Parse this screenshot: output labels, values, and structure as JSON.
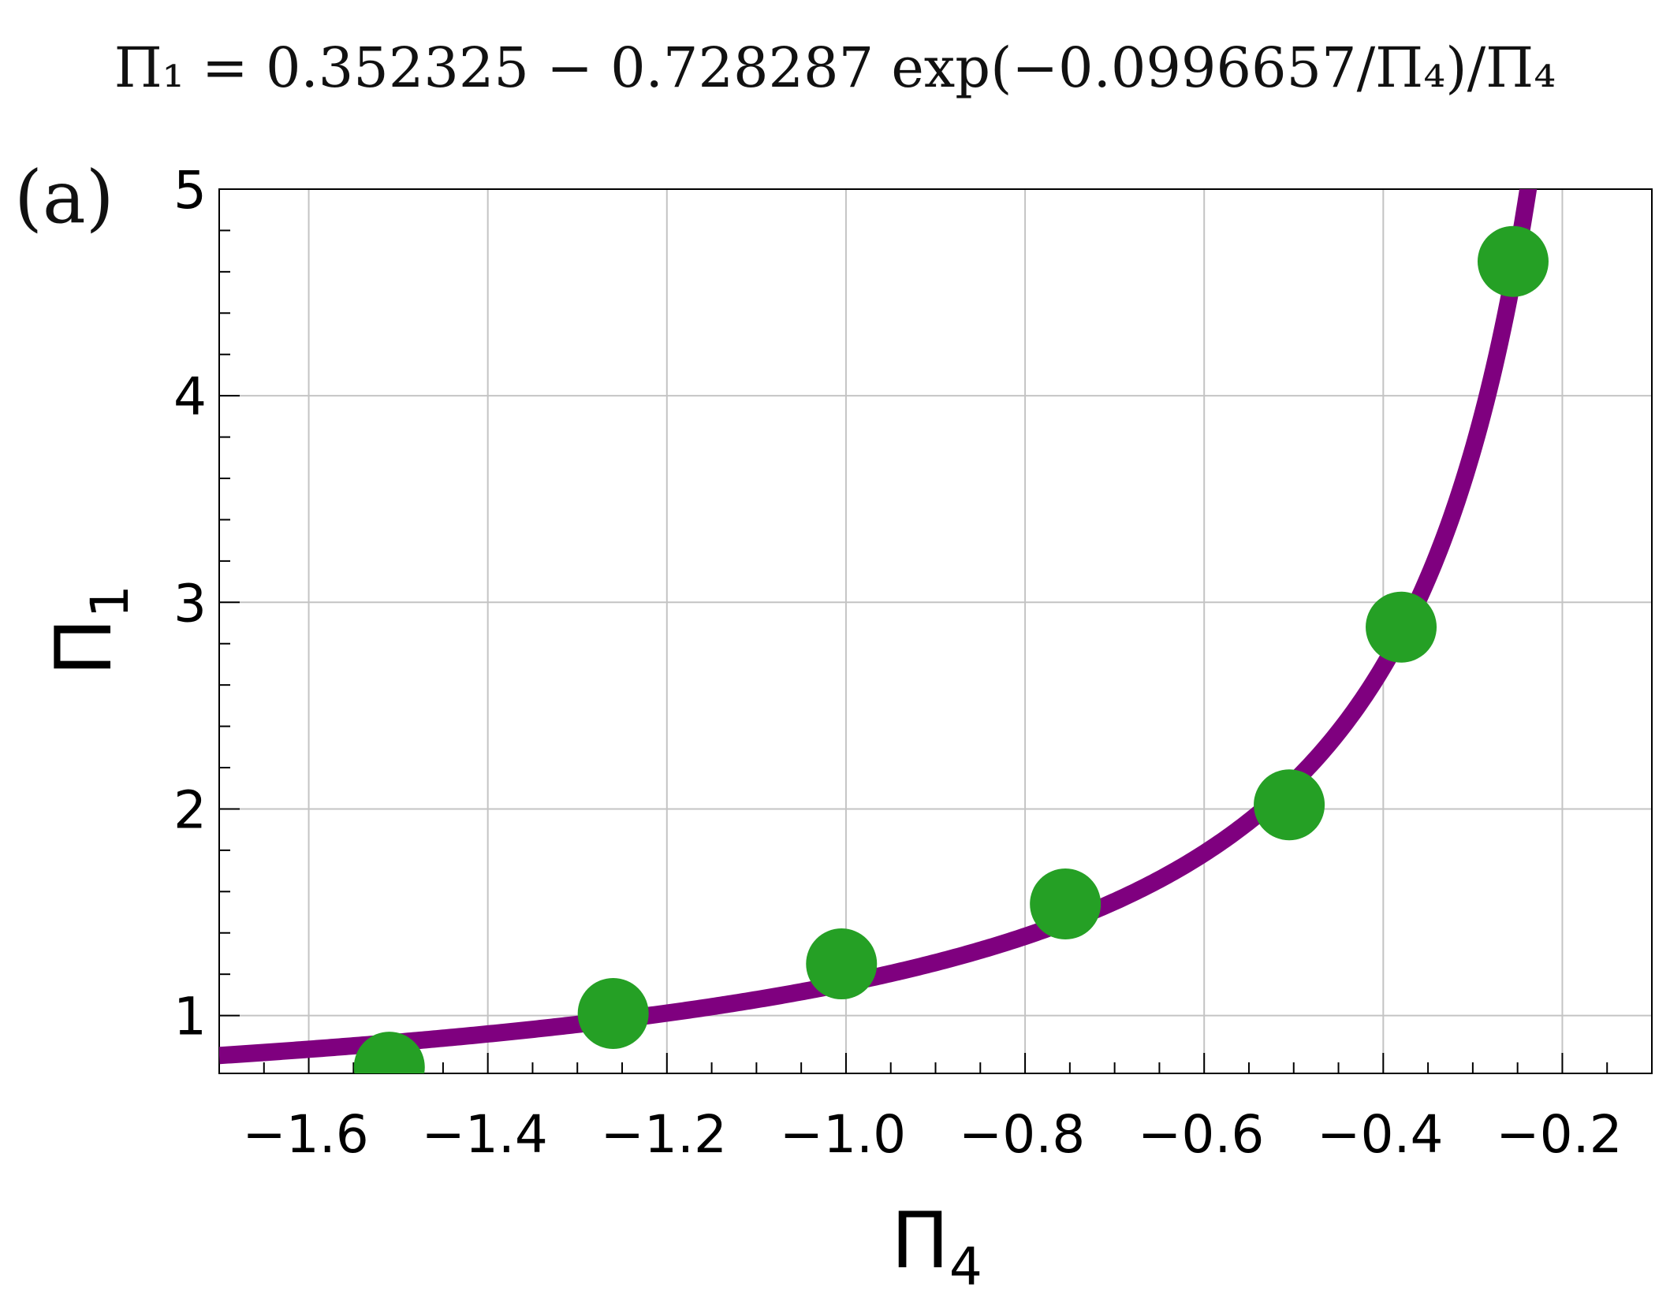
{
  "chart_data": {
    "type": "scatter",
    "title": "Π₁ = 0.352325 − 0.728287 exp(−0.0996657/Π₄)/Π₄",
    "panel_label": "(a)",
    "xlabel": "Π",
    "xlabel_sub": "4",
    "ylabel": "Π",
    "ylabel_sub": "1",
    "xlim": [
      -1.7,
      -0.1
    ],
    "ylim": [
      0.72,
      5.0
    ],
    "xticks": [
      -1.6,
      -1.4,
      -1.2,
      -1.0,
      -0.8,
      -0.6,
      -0.4,
      -0.2
    ],
    "xtick_labels": [
      "−1.6",
      "−1.4",
      "−1.2",
      "−1.0",
      "−0.8",
      "−0.6",
      "−0.4",
      "−0.2"
    ],
    "yticks": [
      1,
      2,
      3,
      4,
      5
    ],
    "ytick_labels": [
      "1",
      "2",
      "3",
      "4",
      "5"
    ],
    "grid": true,
    "fit": {
      "a": 0.352325,
      "b": 0.728287,
      "c": 0.0996657,
      "color": "#7f007f"
    },
    "points": {
      "color": "#25a025",
      "x": [
        -1.51,
        -1.26,
        -1.005,
        -0.755,
        -0.505,
        -0.38,
        -0.255
      ],
      "y": [
        0.75,
        1.01,
        1.25,
        1.54,
        2.02,
        2.88,
        4.65
      ]
    }
  }
}
